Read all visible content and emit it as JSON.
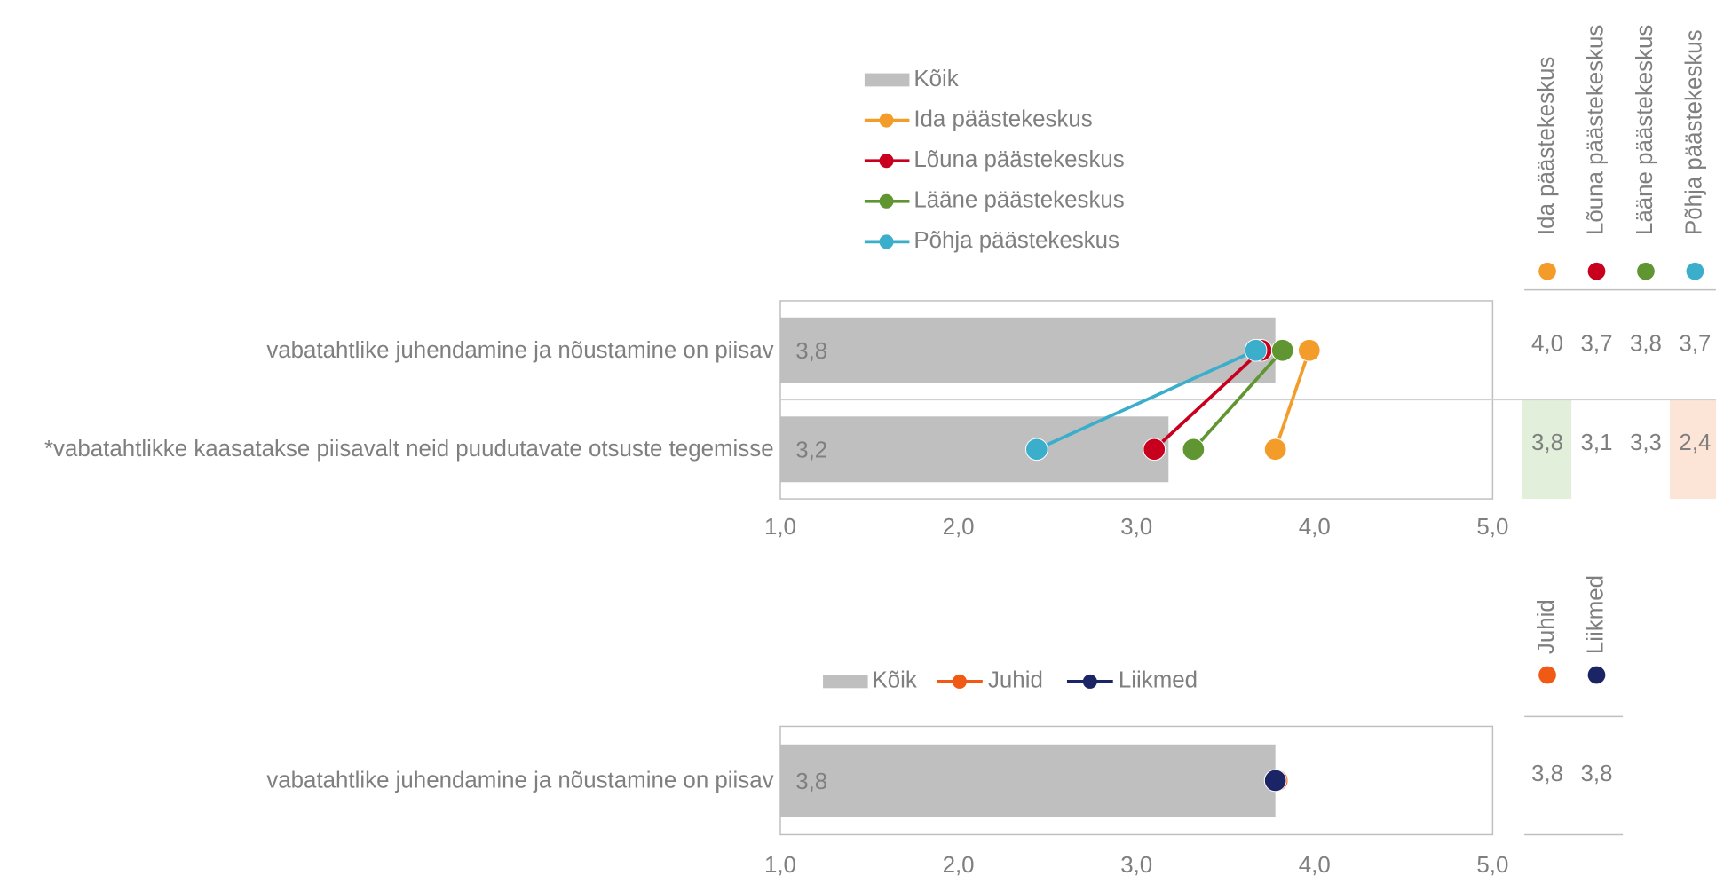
{
  "chart_data": [
    {
      "type": "bar_dot",
      "categories": [
        "vabatahtlike juhendamine ja nõustamine on piisav",
        "*vabatahtlikke kaasatakse piisavalt neid puudutavate otsuste tegemisse"
      ],
      "bar": {
        "name": "Kõik",
        "color": "#bfbfbf",
        "values": [
          3.78,
          3.18
        ],
        "value_labels": [
          "3,8",
          "3,2"
        ]
      },
      "series": [
        {
          "name": "Ida päästekeskus",
          "color": "#f39c2a",
          "values": [
            3.97,
            3.78
          ],
          "value_labels": [
            "4,0",
            "3,8"
          ],
          "cell_colors": [
            null,
            "#e2efda"
          ]
        },
        {
          "name": "Lõuna päästekeskus",
          "color": "#c8001e",
          "values": [
            3.7,
            3.1
          ],
          "value_labels": [
            "3,7",
            "3,1"
          ],
          "cell_colors": [
            null,
            null
          ]
        },
        {
          "name": "Lääne päästekeskus",
          "color": "#5f9631",
          "values": [
            3.82,
            3.32
          ],
          "value_labels": [
            "3,8",
            "3,3"
          ],
          "cell_colors": [
            null,
            null
          ]
        },
        {
          "name": "Põhja päästekeskus",
          "color": "#3aaecb",
          "values": [
            3.67,
            2.44
          ],
          "value_labels": [
            "3,7",
            "2,4"
          ],
          "cell_colors": [
            null,
            "#fce4d6"
          ]
        }
      ],
      "connect_series": true,
      "legend": "vertical",
      "xlim": [
        1,
        5
      ],
      "xticks": [
        {
          "value": 1,
          "label": "1,0"
        },
        {
          "value": 2,
          "label": "2,0"
        },
        {
          "value": 3,
          "label": "3,0"
        },
        {
          "value": 4,
          "label": "4,0"
        },
        {
          "value": 5,
          "label": "5,0"
        }
      ]
    },
    {
      "type": "bar_dot",
      "categories": [
        "vabatahtlike juhendamine ja nõustamine on piisav"
      ],
      "bar": {
        "name": "Kõik",
        "color": "#bfbfbf",
        "values": [
          3.78
        ],
        "value_labels": [
          "3,8"
        ]
      },
      "series": [
        {
          "name": "Juhid",
          "color": "#f05a14",
          "values": [
            3.79
          ],
          "value_labels": [
            "3,8"
          ],
          "cell_colors": [
            null
          ]
        },
        {
          "name": "Liikmed",
          "color": "#1b2464",
          "values": [
            3.78
          ],
          "value_labels": [
            "3,8"
          ],
          "cell_colors": [
            null
          ]
        }
      ],
      "connect_series": false,
      "legend": "horizontal",
      "xlim": [
        1,
        5
      ],
      "xticks": [
        {
          "value": 1,
          "label": "1,0"
        },
        {
          "value": 2,
          "label": "2,0"
        },
        {
          "value": 3,
          "label": "3,0"
        },
        {
          "value": 4,
          "label": "4,0"
        },
        {
          "value": 5,
          "label": "5,0"
        }
      ]
    }
  ]
}
